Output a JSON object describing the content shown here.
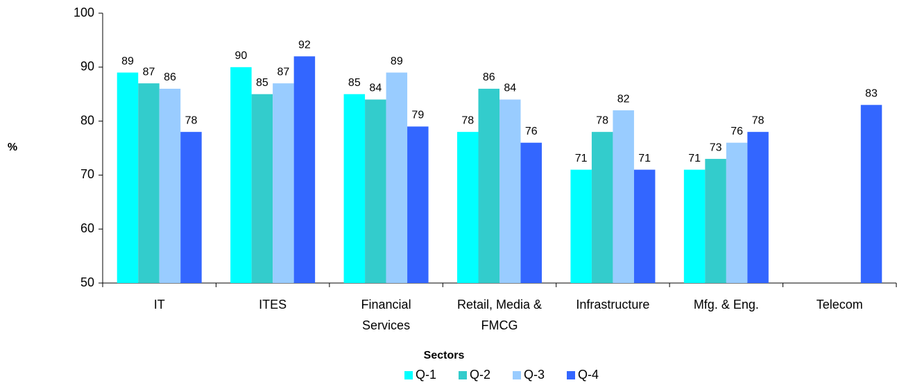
{
  "chart_data": {
    "type": "bar",
    "x_label": "Sectors",
    "y_label": "%",
    "categories": [
      "IT",
      "ITES",
      "Financial Services",
      "Retail, Media & FMCG",
      "Infrastructure",
      "Mfg. & Eng.",
      "Telecom"
    ],
    "series": [
      {
        "name": "Q-1",
        "color": "#00ffff",
        "values": [
          89,
          90,
          85,
          78,
          71,
          71,
          null
        ]
      },
      {
        "name": "Q-2",
        "color": "#33cccc",
        "values": [
          87,
          85,
          84,
          86,
          78,
          73,
          null
        ]
      },
      {
        "name": "Q-3",
        "color": "#99ccff",
        "values": [
          86,
          87,
          89,
          84,
          82,
          76,
          null
        ]
      },
      {
        "name": "Q-4",
        "color": "#3366ff",
        "values": [
          78,
          92,
          79,
          76,
          71,
          78,
          83
        ]
      }
    ],
    "ylim": [
      50,
      100
    ],
    "yticks": [
      50,
      60,
      70,
      80,
      90,
      100
    ],
    "grid": false,
    "legend": "bottom"
  }
}
